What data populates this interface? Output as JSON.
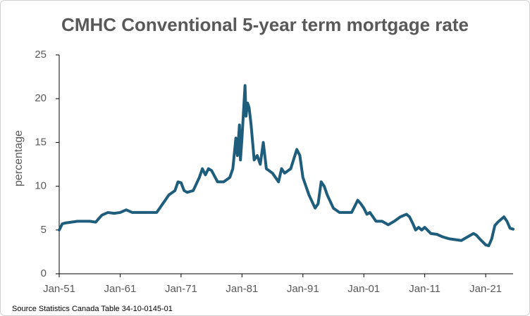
{
  "chart_data": {
    "type": "line",
    "title": "CMHC Conventional 5-year term mortgage rate",
    "y_label": "percentage",
    "source": "Source Statistics Canada Table 34-10-0145-01",
    "ylim": [
      0,
      25
    ],
    "yticks": [
      0,
      5,
      10,
      15,
      20,
      25
    ],
    "xlim": [
      "1951-01",
      "2025-07"
    ],
    "xticks": [
      {
        "value": "1951-01",
        "label": "Jan-51"
      },
      {
        "value": "1961-01",
        "label": "Jan-61"
      },
      {
        "value": "1971-01",
        "label": "Jan-71"
      },
      {
        "value": "1981-01",
        "label": "Jan-81"
      },
      {
        "value": "1991-01",
        "label": "Jan-91"
      },
      {
        "value": "2001-01",
        "label": "Jan-01"
      },
      {
        "value": "2011-01",
        "label": "Jan-11"
      },
      {
        "value": "2021-01",
        "label": "Jan-21"
      }
    ],
    "grid": false,
    "series": [
      {
        "color": "#1f5d7c",
        "x": [
          "1951-01",
          "1951-07",
          "1952-01",
          "1954-01",
          "1956-01",
          "1957-01",
          "1958-01",
          "1959-01",
          "1960-01",
          "1961-01",
          "1962-01",
          "1963-01",
          "1965-01",
          "1967-01",
          "1968-01",
          "1969-01",
          "1970-01",
          "1970-07",
          "1971-01",
          "1971-07",
          "1972-01",
          "1973-01",
          "1974-01",
          "1974-07",
          "1975-01",
          "1975-07",
          "1976-01",
          "1977-01",
          "1978-01",
          "1979-01",
          "1979-07",
          "1980-01",
          "1980-04",
          "1980-08",
          "1980-10",
          "1981-01",
          "1981-07",
          "1981-09",
          "1981-12",
          "1982-03",
          "1982-07",
          "1982-10",
          "1983-01",
          "1983-07",
          "1984-01",
          "1984-07",
          "1985-01",
          "1986-01",
          "1987-01",
          "1987-07",
          "1988-01",
          "1989-01",
          "1990-01",
          "1990-07",
          "1991-01",
          "1991-07",
          "1992-01",
          "1993-01",
          "1993-07",
          "1994-01",
          "1994-07",
          "1995-01",
          "1996-01",
          "1997-01",
          "1998-01",
          "1999-01",
          "2000-01",
          "2000-07",
          "2001-01",
          "2001-07",
          "2002-01",
          "2003-01",
          "2004-01",
          "2005-01",
          "2006-01",
          "2007-01",
          "2008-01",
          "2008-07",
          "2009-01",
          "2009-07",
          "2010-01",
          "2010-07",
          "2011-01",
          "2012-01",
          "2013-01",
          "2014-01",
          "2015-01",
          "2016-01",
          "2017-01",
          "2018-01",
          "2019-01",
          "2019-07",
          "2020-01",
          "2021-01",
          "2021-07",
          "2022-01",
          "2022-07",
          "2023-01",
          "2024-01",
          "2024-07",
          "2025-01",
          "2025-07"
        ],
        "values": [
          5.0,
          5.7,
          5.8,
          6.0,
          6.0,
          5.9,
          6.7,
          7.0,
          6.9,
          7.0,
          7.3,
          7.0,
          7.0,
          7.0,
          8.0,
          9.0,
          9.5,
          10.5,
          10.4,
          9.5,
          9.3,
          9.5,
          11.0,
          12.0,
          11.3,
          12.0,
          11.8,
          10.5,
          10.5,
          11.0,
          12.0,
          15.5,
          13.5,
          17.0,
          13.0,
          15.5,
          21.5,
          18.0,
          19.5,
          19.0,
          17.0,
          15.0,
          13.0,
          13.5,
          12.5,
          15.0,
          12.0,
          11.5,
          10.5,
          12.0,
          11.5,
          12.0,
          14.2,
          13.5,
          11.0,
          10.0,
          9.0,
          7.5,
          8.0,
          10.5,
          10.0,
          9.0,
          7.5,
          7.0,
          7.0,
          7.0,
          8.4,
          8.0,
          7.5,
          6.8,
          7.0,
          6.0,
          6.0,
          5.6,
          6.0,
          6.5,
          6.8,
          6.5,
          5.8,
          5.0,
          5.3,
          5.0,
          5.3,
          4.6,
          4.5,
          4.2,
          4.0,
          3.9,
          3.8,
          4.2,
          4.6,
          4.4,
          4.0,
          3.3,
          3.2,
          4.0,
          5.5,
          5.9,
          6.5,
          6.0,
          5.2,
          5.1
        ]
      }
    ]
  }
}
